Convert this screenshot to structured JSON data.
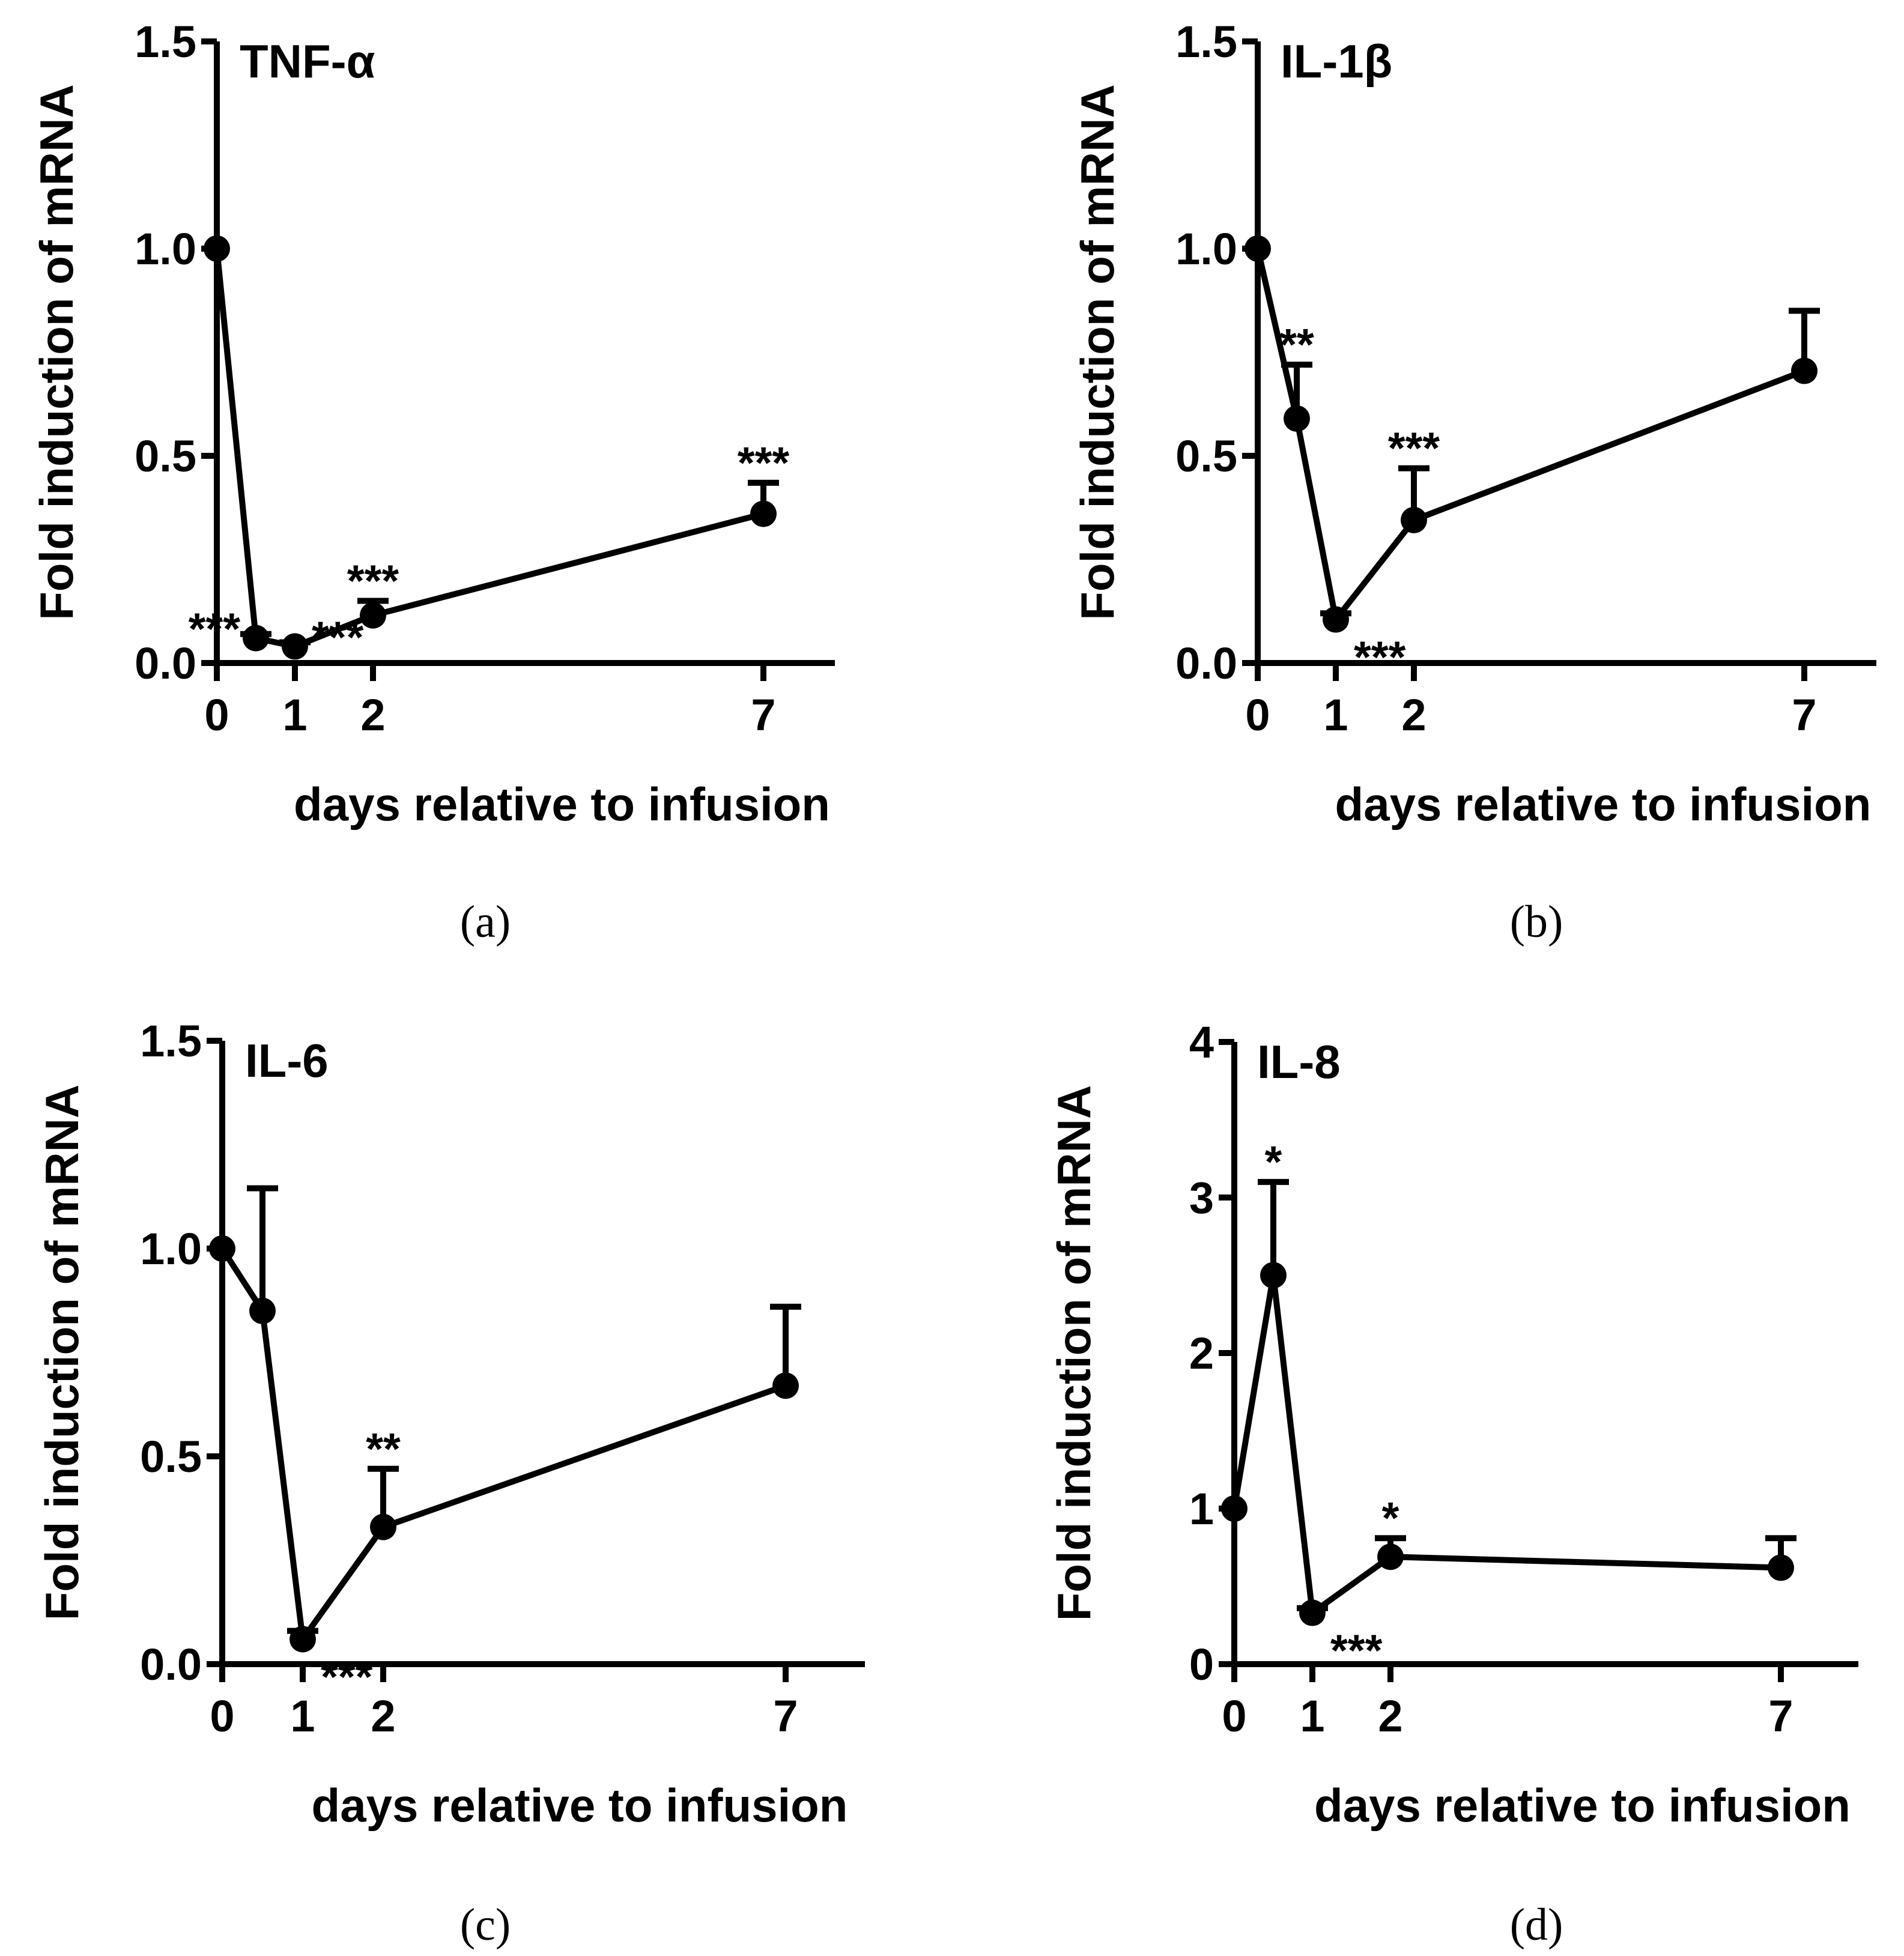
{
  "figure": {
    "captions": [
      "(a)",
      "(b)",
      "(c)",
      "(d)"
    ]
  },
  "chart_data": [
    {
      "type": "line",
      "title": "TNF-α",
      "xlabel": "days relative to infusion",
      "ylabel": "Fold induction of mRNA",
      "x": [
        0,
        0.5,
        1,
        2,
        7
      ],
      "xticks": [
        "0",
        "1",
        "2",
        "7"
      ],
      "xtick_values": [
        0,
        1,
        2,
        7
      ],
      "xlim": [
        0,
        8
      ],
      "yticks": [
        "0.0",
        "0.5",
        "1.0",
        "1.5"
      ],
      "ytick_values": [
        0,
        0.5,
        1.0,
        1.5
      ],
      "ylim": [
        0,
        1.5
      ],
      "series": [
        {
          "name": "TNF-α",
          "values": [
            1.0,
            0.06,
            0.04,
            0.115,
            0.36
          ],
          "error_upper": [
            1.0,
            0.07,
            0.05,
            0.15,
            0.435
          ],
          "significance": [
            "",
            "***",
            "***",
            "***",
            "***"
          ]
        }
      ]
    },
    {
      "type": "line",
      "title": "IL-1β",
      "xlabel": "days relative to infusion",
      "ylabel": "Fold induction of mRNA",
      "x": [
        0,
        0.5,
        1,
        2,
        7
      ],
      "xticks": [
        "0",
        "1",
        "2",
        "7"
      ],
      "xtick_values": [
        0,
        1,
        2,
        7
      ],
      "xlim": [
        0,
        8
      ],
      "yticks": [
        "0.0",
        "0.5",
        "1.0",
        "1.5"
      ],
      "ytick_values": [
        0,
        0.5,
        1.0,
        1.5
      ],
      "ylim": [
        0,
        1.5
      ],
      "series": [
        {
          "name": "IL-1β",
          "values": [
            1.0,
            0.59,
            0.105,
            0.345,
            0.705
          ],
          "error_upper": [
            1.0,
            0.72,
            0.12,
            0.47,
            0.85
          ],
          "significance": [
            "",
            "**",
            "***",
            "***",
            ""
          ]
        }
      ]
    },
    {
      "type": "line",
      "title": "IL-6",
      "xlabel": "days relative to infusion",
      "ylabel": "Fold induction of mRNA",
      "x": [
        0,
        0.5,
        1,
        2,
        7
      ],
      "xticks": [
        "0",
        "1",
        "2",
        "7"
      ],
      "xtick_values": [
        0,
        1,
        2,
        7
      ],
      "xlim": [
        0,
        8
      ],
      "yticks": [
        "0.0",
        "0.5",
        "1.0",
        "1.5"
      ],
      "ytick_values": [
        0,
        0.5,
        1.0,
        1.5
      ],
      "ylim": [
        0,
        1.5
      ],
      "series": [
        {
          "name": "IL-6",
          "values": [
            1.0,
            0.85,
            0.06,
            0.33,
            0.67
          ],
          "error_upper": [
            1.0,
            1.145,
            0.08,
            0.47,
            0.86
          ],
          "significance": [
            "",
            "",
            "***",
            "**",
            ""
          ]
        }
      ]
    },
    {
      "type": "line",
      "title": "IL-8",
      "xlabel": "days relative to infusion",
      "ylabel": "Fold induction of mRNA",
      "x": [
        0,
        0.5,
        1,
        2,
        7
      ],
      "xticks": [
        "0",
        "1",
        "2",
        "7"
      ],
      "xtick_values": [
        0,
        1,
        2,
        7
      ],
      "xlim": [
        0,
        8
      ],
      "yticks": [
        "0",
        "1",
        "2",
        "3",
        "4"
      ],
      "ytick_values": [
        0,
        1,
        2,
        3,
        4
      ],
      "ylim": [
        0,
        4
      ],
      "series": [
        {
          "name": "IL-8",
          "values": [
            1.0,
            2.5,
            0.33,
            0.69,
            0.62
          ],
          "error_upper": [
            1.0,
            3.1,
            0.36,
            0.81,
            0.81
          ],
          "significance": [
            "",
            "*",
            "***",
            "*",
            ""
          ]
        }
      ]
    }
  ]
}
